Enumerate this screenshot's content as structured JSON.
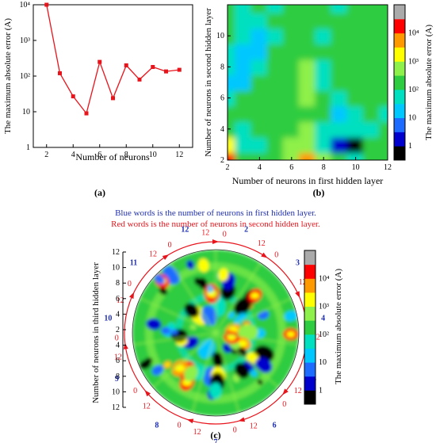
{
  "chart_data": [
    {
      "type": "line",
      "panel": "(a)",
      "xlabel": "Number of neurons",
      "ylabel": "The maximum absolute error (A)",
      "x": [
        2,
        3,
        4,
        5,
        6,
        7,
        8,
        9,
        10,
        11,
        12
      ],
      "y": [
        10000,
        120,
        27,
        9,
        250,
        24,
        200,
        80,
        180,
        135,
        150
      ],
      "xlim": [
        1,
        13
      ],
      "ylim": [
        1,
        10000
      ],
      "yscale": "log",
      "xticks": [
        "2",
        "4",
        "6",
        "8",
        "10",
        "12"
      ],
      "yticks": [
        "1",
        "10",
        "10²",
        "10³",
        "10⁴"
      ],
      "color": "#e8141c"
    },
    {
      "type": "heatmap",
      "panel": "(b)",
      "xlabel": "Number of neurons in first hidden layer",
      "ylabel": "Number of neurons in second hidden layer",
      "colorbar_label": "The maximum absolute error (A)",
      "x": [
        2,
        3,
        4,
        5,
        6,
        7,
        8,
        9,
        10,
        11,
        12
      ],
      "y": [
        2,
        3,
        4,
        5,
        6,
        7,
        8,
        9,
        10,
        11,
        12
      ],
      "log10_error": [
        [
          4.3,
          2.3,
          2.1,
          2.1,
          2.6,
          3.4,
          2.5,
          2.2,
          1.8,
          2.3,
          2.1
        ],
        [
          3.2,
          1.8,
          1.7,
          2.1,
          2.6,
          2.8,
          1.6,
          0.7,
          0.4,
          2.3,
          2.0
        ],
        [
          2.3,
          1.6,
          2.3,
          1.9,
          2.2,
          2.5,
          1.8,
          1.7,
          1.6,
          1.7,
          2.1
        ],
        [
          2.1,
          2.2,
          2.0,
          1.9,
          1.9,
          2.3,
          2.0,
          1.5,
          1.7,
          2.0,
          1.8
        ],
        [
          1.6,
          2.0,
          2.1,
          2.1,
          2.0,
          2.5,
          1.9,
          1.8,
          1.9,
          2.1,
          2.0
        ],
        [
          1.5,
          1.5,
          2.1,
          1.9,
          2.3,
          2.6,
          1.8,
          2.0,
          2.2,
          1.9,
          2.1
        ],
        [
          1.7,
          1.3,
          1.6,
          1.9,
          2.2,
          2.4,
          1.7,
          1.9,
          2.0,
          2.2,
          1.9
        ],
        [
          1.8,
          1.4,
          1.5,
          1.9,
          2.3,
          2.1,
          2.0,
          2.1,
          1.9,
          2.3,
          2.0
        ],
        [
          2.2,
          1.7,
          1.3,
          1.8,
          2.0,
          2.3,
          1.8,
          2.0,
          2.1,
          2.0,
          2.1
        ],
        [
          2.1,
          1.8,
          1.7,
          2.0,
          1.9,
          2.0,
          1.9,
          1.9,
          2.2,
          1.9,
          2.3
        ],
        [
          2.0,
          1.6,
          2.0,
          1.8,
          2.1,
          2.2,
          2.0,
          1.8,
          2.0,
          2.1,
          2.0
        ]
      ],
      "xticks": [
        "2",
        "4",
        "6",
        "8",
        "10",
        "12"
      ],
      "yticks": [
        "2",
        "4",
        "6",
        "8",
        "10"
      ],
      "colorbar_ticks": [
        "1",
        "10",
        "10²",
        "10³",
        "10⁴"
      ]
    },
    {
      "type": "heatmap",
      "panel": "(c)",
      "note_blue": "Blue words is the number of neurons in first hidden layer.",
      "note_red": "Red words is the number of neurons in second hidden layer.",
      "ylabel": "Number of neurons in third hidden layer",
      "colorbar_label": "The maximum absolute error (A)",
      "first_layer_labels": [
        "2",
        "3",
        "4",
        "5",
        "6",
        "7",
        "8",
        "9",
        "10",
        "11",
        "12"
      ],
      "second_layer_range": [
        "0",
        "12"
      ],
      "yticks_left": [
        "12",
        "10",
        "8",
        "6",
        "4",
        "2",
        "4",
        "6",
        "8",
        "10",
        "12"
      ],
      "colorbar_ticks": [
        "1",
        "10",
        "10²",
        "10³",
        "10⁴"
      ]
    }
  ],
  "captions": {
    "a": "(a)",
    "b": "(b)",
    "c": "(c)"
  },
  "colors": {
    "line": "#e8141c",
    "blue_label": "#1f2fb0",
    "red_label": "#e8141c",
    "colormap": [
      "#000000",
      "#0000cc",
      "#1e6cff",
      "#00c8ff",
      "#00e0c0",
      "#2ecc40",
      "#8ef04a",
      "#ffff00",
      "#ff9900",
      "#ff0000",
      "#aaaaaa"
    ]
  }
}
